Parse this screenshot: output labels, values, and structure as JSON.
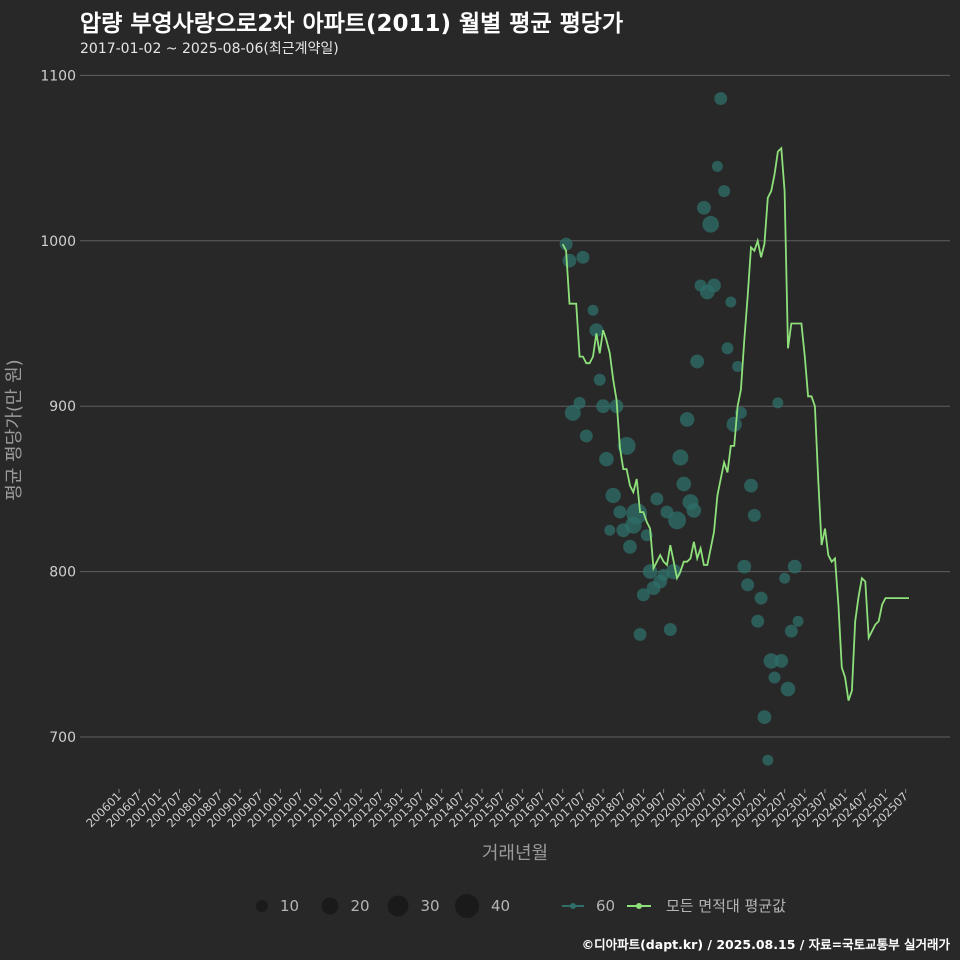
{
  "title": "압량 부영사랑으로2차 아파트(2011) 월별 평균 평당가",
  "subtitle": "2017-01-02 ~ 2025-08-06(최근계약일)",
  "caption": "©디아파트(dapt.kr) / 2025.08.15 / 자료=국토교통부 실거래가",
  "colors": {
    "background": "#282828",
    "grid": "#5f5f5f",
    "line": "#8ee07a",
    "points": "#2f6f6a",
    "legend_size": "#1a1a1a"
  },
  "chart_data": {
    "type": "line+scatter",
    "title": "압량 부영사랑으로2차 아파트(2011) 월별 평균 평당가",
    "xlabel": "거래년월",
    "ylabel": "평균 평당가(만 원)",
    "ylim": [
      670,
      1110
    ],
    "yticks": [
      700,
      800,
      900,
      1000,
      1100
    ],
    "x_tick_labels": [
      "200601",
      "200607",
      "200701",
      "200707",
      "200801",
      "200807",
      "200901",
      "200907",
      "201001",
      "201007",
      "201101",
      "201107",
      "201201",
      "201207",
      "201301",
      "201307",
      "201401",
      "201407",
      "201501",
      "201507",
      "201601",
      "201607",
      "201701",
      "201707",
      "201801",
      "201807",
      "201901",
      "201907",
      "202001",
      "202007",
      "202101",
      "202107",
      "202201",
      "202207",
      "202301",
      "202307",
      "202401",
      "202407",
      "202501",
      "202507"
    ],
    "x_range_months": [
      0,
      235
    ],
    "line_series": {
      "name": "모든 면적대 평균값",
      "months": [
        132,
        133,
        134,
        135,
        136,
        137,
        138,
        139,
        140,
        141,
        142,
        143,
        144,
        145,
        146,
        147,
        148,
        149,
        150,
        151,
        152,
        153,
        154,
        155,
        156,
        157,
        158,
        159,
        160,
        161,
        162,
        163,
        164,
        165,
        166,
        167,
        168,
        169,
        170,
        171,
        172,
        173,
        174,
        175,
        176,
        177,
        178,
        179,
        180,
        181,
        182,
        183,
        184,
        185,
        186,
        187,
        188,
        189,
        190,
        191,
        192,
        193,
        194,
        195,
        196,
        197,
        198,
        199,
        200,
        201,
        202,
        203,
        204,
        205,
        206,
        207,
        208,
        209,
        210,
        211,
        212,
        213,
        214,
        215,
        216,
        217,
        218,
        219,
        220,
        221,
        222,
        223,
        224,
        225,
        226,
        227,
        228,
        229,
        230,
        231,
        232,
        233,
        234,
        235
      ],
      "values": [
        998,
        994,
        962,
        962,
        962,
        930,
        930,
        926,
        926,
        930,
        944,
        932,
        946,
        940,
        932,
        916,
        904,
        875,
        862,
        862,
        852,
        848,
        856,
        836,
        836,
        830,
        826,
        802,
        806,
        810,
        806,
        804,
        816,
        806,
        796,
        800,
        806,
        806,
        808,
        818,
        808,
        814,
        804,
        804,
        814,
        824,
        846,
        856,
        866,
        860,
        876,
        876,
        900,
        910,
        940,
        966,
        996,
        994,
        1000,
        990,
        998,
        1026,
        1030,
        1040,
        1054,
        1056,
        1030,
        935,
        950,
        950,
        950,
        950,
        930,
        906,
        906,
        900,
        856,
        816,
        826,
        810,
        806,
        808,
        780,
        742,
        736,
        722,
        728,
        770,
        785,
        796,
        794,
        760,
        764,
        768,
        770,
        780,
        784,
        784,
        784,
        784,
        784,
        784,
        784,
        784
      ],
      "draw_until_month": 235
    },
    "scatter_series": {
      "name": "60",
      "points": [
        {
          "month": 133,
          "value": 998,
          "size": 5
        },
        {
          "month": 134,
          "value": 988,
          "size": 6
        },
        {
          "month": 135,
          "value": 896,
          "size": 9
        },
        {
          "month": 137,
          "value": 902,
          "size": 4
        },
        {
          "month": 138,
          "value": 990,
          "size": 5
        },
        {
          "month": 139,
          "value": 882,
          "size": 5
        },
        {
          "month": 141,
          "value": 958,
          "size": 3
        },
        {
          "month": 142,
          "value": 946,
          "size": 6
        },
        {
          "month": 143,
          "value": 916,
          "size": 4
        },
        {
          "month": 144,
          "value": 900,
          "size": 6
        },
        {
          "month": 145,
          "value": 868,
          "size": 7
        },
        {
          "month": 146,
          "value": 825,
          "size": 3
        },
        {
          "month": 147,
          "value": 846,
          "size": 8
        },
        {
          "month": 148,
          "value": 900,
          "size": 6
        },
        {
          "month": 149,
          "value": 836,
          "size": 5
        },
        {
          "month": 150,
          "value": 825,
          "size": 6
        },
        {
          "month": 151,
          "value": 876,
          "size": 12
        },
        {
          "month": 152,
          "value": 815,
          "size": 6
        },
        {
          "month": 153,
          "value": 828,
          "size": 10
        },
        {
          "month": 154,
          "value": 835,
          "size": 18
        },
        {
          "month": 155,
          "value": 762,
          "size": 5
        },
        {
          "month": 156,
          "value": 786,
          "size": 5
        },
        {
          "month": 157,
          "value": 822,
          "size": 4
        },
        {
          "month": 158,
          "value": 800,
          "size": 7
        },
        {
          "month": 159,
          "value": 790,
          "size": 6
        },
        {
          "month": 160,
          "value": 844,
          "size": 5
        },
        {
          "month": 161,
          "value": 794,
          "size": 6
        },
        {
          "month": 162,
          "value": 798,
          "size": 4
        },
        {
          "month": 163,
          "value": 836,
          "size": 5
        },
        {
          "month": 164,
          "value": 765,
          "size": 5
        },
        {
          "month": 165,
          "value": 800,
          "size": 8
        },
        {
          "month": 166,
          "value": 831,
          "size": 12
        },
        {
          "month": 167,
          "value": 869,
          "size": 9
        },
        {
          "month": 168,
          "value": 853,
          "size": 7
        },
        {
          "month": 169,
          "value": 892,
          "size": 7
        },
        {
          "month": 170,
          "value": 842,
          "size": 9
        },
        {
          "month": 171,
          "value": 837,
          "size": 7
        },
        {
          "month": 172,
          "value": 927,
          "size": 6
        },
        {
          "month": 173,
          "value": 973,
          "size": 4
        },
        {
          "month": 174,
          "value": 1020,
          "size": 6
        },
        {
          "month": 175,
          "value": 969,
          "size": 7
        },
        {
          "month": 176,
          "value": 1010,
          "size": 10
        },
        {
          "month": 177,
          "value": 973,
          "size": 6
        },
        {
          "month": 178,
          "value": 1045,
          "size": 3
        },
        {
          "month": 179,
          "value": 1086,
          "size": 5
        },
        {
          "month": 180,
          "value": 1030,
          "size": 4
        },
        {
          "month": 181,
          "value": 935,
          "size": 4
        },
        {
          "month": 182,
          "value": 963,
          "size": 3
        },
        {
          "month": 183,
          "value": 889,
          "size": 8
        },
        {
          "month": 184,
          "value": 924,
          "size": 3
        },
        {
          "month": 185,
          "value": 896,
          "size": 4
        },
        {
          "month": 186,
          "value": 803,
          "size": 6
        },
        {
          "month": 187,
          "value": 792,
          "size": 5
        },
        {
          "month": 188,
          "value": 852,
          "size": 6
        },
        {
          "month": 189,
          "value": 834,
          "size": 5
        },
        {
          "month": 190,
          "value": 770,
          "size": 5
        },
        {
          "month": 191,
          "value": 784,
          "size": 5
        },
        {
          "month": 192,
          "value": 712,
          "size": 6
        },
        {
          "month": 193,
          "value": 686,
          "size": 3
        },
        {
          "month": 194,
          "value": 746,
          "size": 8
        },
        {
          "month": 195,
          "value": 736,
          "size": 4
        },
        {
          "month": 196,
          "value": 902,
          "size": 3
        },
        {
          "month": 197,
          "value": 746,
          "size": 6
        },
        {
          "month": 198,
          "value": 796,
          "size": 3
        },
        {
          "month": 199,
          "value": 729,
          "size": 7
        },
        {
          "month": 200,
          "value": 764,
          "size": 5
        },
        {
          "month": 201,
          "value": 803,
          "size": 6
        },
        {
          "month": 202,
          "value": 770,
          "size": 3
        }
      ]
    },
    "legend": {
      "size_title": "",
      "sizes": [
        {
          "label": "10",
          "size": 10
        },
        {
          "label": "20",
          "size": 20
        },
        {
          "label": "30",
          "size": 30
        },
        {
          "label": "40",
          "size": 40
        }
      ],
      "area_label": "60",
      "line_label": "모든 면적대 평균값"
    }
  }
}
